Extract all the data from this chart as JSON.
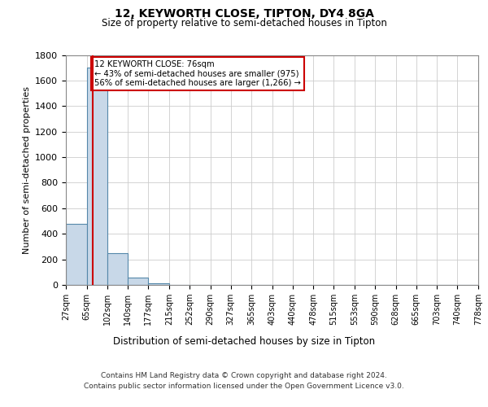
{
  "title": "12, KEYWORTH CLOSE, TIPTON, DY4 8GA",
  "subtitle": "Size of property relative to semi-detached houses in Tipton",
  "xlabel": "Distribution of semi-detached houses by size in Tipton",
  "ylabel": "Number of semi-detached properties",
  "property_size": 76,
  "property_label": "12 KEYWORTH CLOSE: 76sqm",
  "pct_smaller": 43,
  "n_smaller": 975,
  "pct_larger": 56,
  "n_larger": 1266,
  "bin_edges": [
    27,
    65,
    102,
    140,
    177,
    215,
    252,
    290,
    327,
    365,
    403,
    440,
    478,
    515,
    553,
    590,
    628,
    665,
    703,
    740,
    778
  ],
  "bin_counts": [
    480,
    1700,
    250,
    55,
    15,
    0,
    0,
    0,
    0,
    0,
    0,
    0,
    0,
    0,
    0,
    0,
    0,
    0,
    0,
    0
  ],
  "bar_color": "#c8d8e8",
  "bar_edge_color": "#5588aa",
  "red_line_color": "#cc0000",
  "annotation_box_color": "#cc0000",
  "annotation_text_color": "#000000",
  "grid_color": "#cccccc",
  "background_color": "#ffffff",
  "ylim": [
    0,
    1800
  ],
  "yticks": [
    0,
    200,
    400,
    600,
    800,
    1000,
    1200,
    1400,
    1600,
    1800
  ],
  "footer_line1": "Contains HM Land Registry data © Crown copyright and database right 2024.",
  "footer_line2": "Contains public sector information licensed under the Open Government Licence v3.0."
}
